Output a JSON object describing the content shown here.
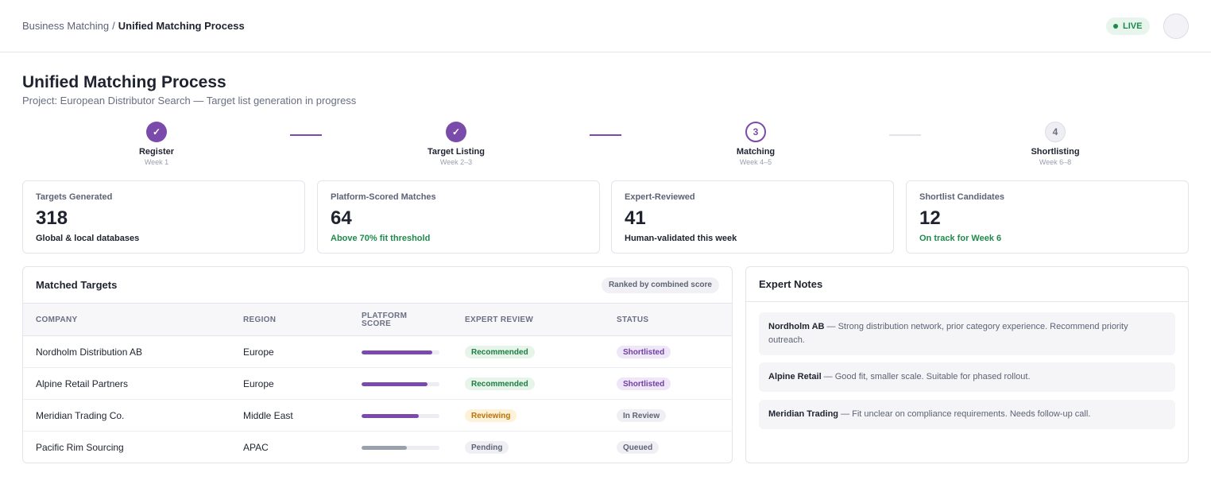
{
  "breadcrumb": {
    "parent": "Business Matching",
    "separator": "/",
    "current": "Unified Matching Process"
  },
  "live_badge": "LIVE",
  "page": {
    "title": "Unified Matching Process",
    "subtitle": "Project: European Distributor Search — Target list generation in progress"
  },
  "steps": [
    {
      "marker": "✓",
      "label": "Register",
      "week": "Week 1",
      "state": "done"
    },
    {
      "marker": "✓",
      "label": "Target Listing",
      "week": "Week 2–3",
      "state": "done"
    },
    {
      "marker": "3",
      "label": "Matching",
      "week": "Week 4–5",
      "state": "active"
    },
    {
      "marker": "4",
      "label": "Shortlisting",
      "week": "Week 6–8",
      "state": "todo"
    }
  ],
  "stats": [
    {
      "label": "Targets Generated",
      "value": "318",
      "note": "Global & local databases",
      "note_tone": "neutral"
    },
    {
      "label": "Platform-Scored Matches",
      "value": "64",
      "note": "Above 70% fit threshold",
      "note_tone": "positive"
    },
    {
      "label": "Expert-Reviewed",
      "value": "41",
      "note": "Human-validated this week",
      "note_tone": "neutral"
    },
    {
      "label": "Shortlist Candidates",
      "value": "12",
      "note": "On track for Week 6",
      "note_tone": "positive"
    }
  ],
  "targets": {
    "title": "Matched Targets",
    "ranked_label": "Ranked by combined score",
    "columns": {
      "company": "COMPANY",
      "region": "REGION",
      "score_line1": "PLATFORM",
      "score_line2": "SCORE",
      "review": "EXPERT REVIEW",
      "status": "STATUS"
    },
    "rows": [
      {
        "company": "Nordholm Distribution AB",
        "region": "Europe",
        "score": 0.91,
        "score_color": "#7b4bab",
        "review": "Recommended",
        "review_tone": "green",
        "status": "Shortlisted",
        "status_tone": "purple"
      },
      {
        "company": "Alpine Retail Partners",
        "region": "Europe",
        "score": 0.85,
        "score_color": "#7b4bab",
        "review": "Recommended",
        "review_tone": "green",
        "status": "Shortlisted",
        "status_tone": "purple"
      },
      {
        "company": "Meridian Trading Co.",
        "region": "Middle East",
        "score": 0.73,
        "score_color": "#7b4bab",
        "review": "Reviewing",
        "review_tone": "amber",
        "status": "In Review",
        "status_tone": "gray"
      },
      {
        "company": "Pacific Rim Sourcing",
        "region": "APAC",
        "score": 0.58,
        "score_color": "#9aa0ad",
        "review": "Pending",
        "review_tone": "gray",
        "status": "Queued",
        "status_tone": "gray"
      }
    ]
  },
  "notes": {
    "title": "Expert Notes",
    "items": [
      {
        "name": "Nordholm AB",
        "text": " — Strong distribution network, prior category experience. Recommend priority outreach."
      },
      {
        "name": "Alpine Retail",
        "text": " — Good fit, smaller scale. Suitable for phased rollout."
      },
      {
        "name": "Meridian Trading",
        "text": " — Fit unclear on compliance requirements. Needs follow-up call."
      }
    ]
  },
  "colors": {
    "accent": "#7b4bab",
    "green_bg": "#e6f4ea",
    "green_fg": "#1e7d43",
    "purple_bg": "#efe6f7",
    "purple_fg": "#6e3ea0",
    "amber_bg": "#fdf1d8",
    "amber_fg": "#b7730a",
    "gray_bg": "#f0f0f4",
    "gray_fg": "#5d6275"
  }
}
